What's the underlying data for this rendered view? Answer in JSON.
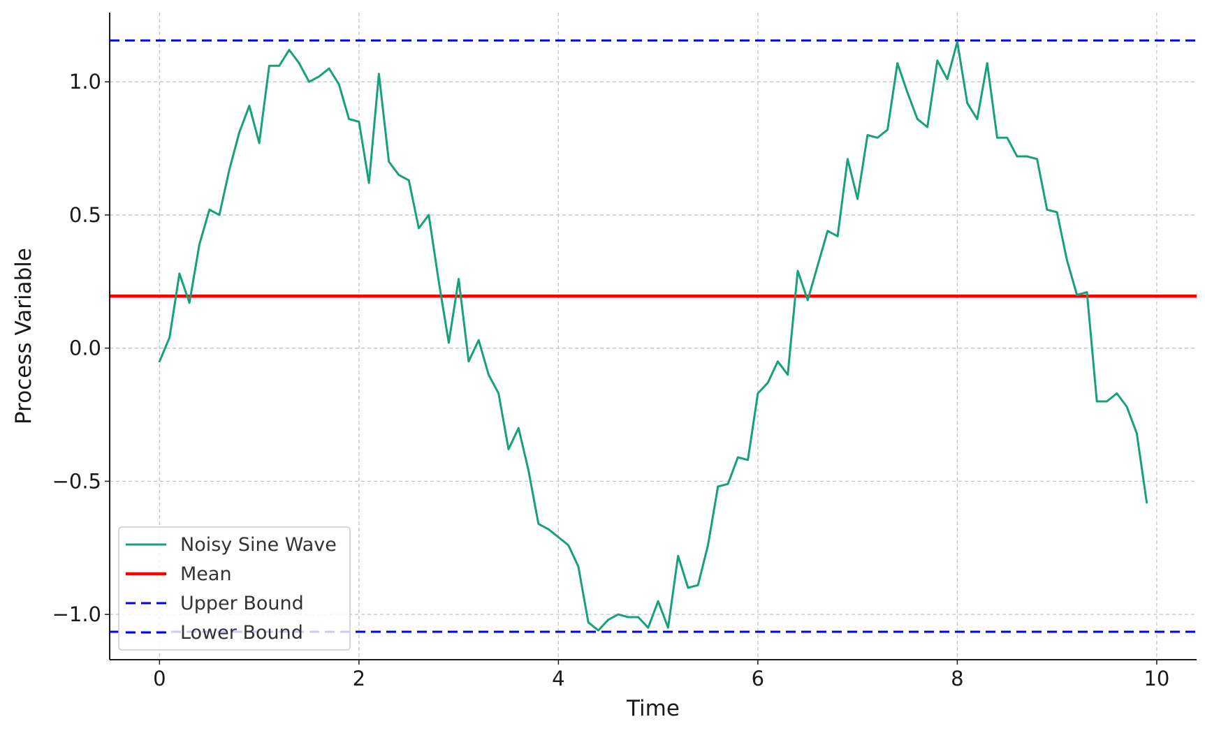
{
  "chart_data": {
    "type": "line",
    "title": "",
    "xlabel": "Time",
    "ylabel": "Process Variable",
    "xlim": [
      -0.5,
      10.4
    ],
    "ylim": [
      -1.17,
      1.26
    ],
    "xticks": [
      0,
      2,
      4,
      6,
      8,
      10
    ],
    "xtick_labels": [
      "0",
      "2",
      "4",
      "6",
      "8",
      "10"
    ],
    "yticks": [
      -1.0,
      -0.5,
      0.0,
      0.5,
      1.0
    ],
    "ytick_labels": [
      "−1.0",
      "−0.5",
      "0.0",
      "0.5",
      "1.0"
    ],
    "grid": true,
    "legend_position": "lower-left",
    "series": [
      {
        "name": "Noisy Sine Wave",
        "style": "solid",
        "color": "#16a07c",
        "x": [
          0.0,
          0.1,
          0.2,
          0.3,
          0.4,
          0.5,
          0.6,
          0.7,
          0.8,
          0.9,
          1.0,
          1.1,
          1.2,
          1.3,
          1.4,
          1.5,
          1.6,
          1.7,
          1.8,
          1.9,
          2.0,
          2.1,
          2.2,
          2.3,
          2.4,
          2.5,
          2.6,
          2.7,
          2.8,
          2.9,
          3.0,
          3.1,
          3.2,
          3.3,
          3.4,
          3.5,
          3.6,
          3.7,
          3.8,
          3.9,
          4.0,
          4.1,
          4.2,
          4.3,
          4.4,
          4.5,
          4.6,
          4.7,
          4.8,
          4.9,
          5.0,
          5.1,
          5.2,
          5.3,
          5.4,
          5.5,
          5.6,
          5.7,
          5.8,
          5.9,
          6.0,
          6.1,
          6.2,
          6.3,
          6.4,
          6.5,
          6.6,
          6.7,
          6.8,
          6.9,
          7.0,
          7.1,
          7.2,
          7.3,
          7.4,
          7.5,
          7.6,
          7.7,
          7.8,
          7.9,
          8.0,
          8.1,
          8.2,
          8.3,
          8.4,
          8.5,
          8.6,
          8.7,
          8.8,
          8.9,
          9.0,
          9.1,
          9.2,
          9.3,
          9.4,
          9.5,
          9.6,
          9.7,
          9.8,
          9.9
        ],
        "y": [
          -0.05,
          0.04,
          0.28,
          0.17,
          0.39,
          0.52,
          0.5,
          0.67,
          0.81,
          0.91,
          0.77,
          1.06,
          1.06,
          1.12,
          1.07,
          1.0,
          1.02,
          1.05,
          0.99,
          0.86,
          0.85,
          0.62,
          1.03,
          0.7,
          0.65,
          0.63,
          0.45,
          0.5,
          0.25,
          0.02,
          0.26,
          -0.05,
          0.03,
          -0.1,
          -0.17,
          -0.38,
          -0.3,
          -0.46,
          -0.66,
          -0.68,
          -0.71,
          -0.74,
          -0.82,
          -1.03,
          -1.06,
          -1.02,
          -1.0,
          -1.01,
          -1.01,
          -1.05,
          -0.95,
          -1.05,
          -0.78,
          -0.9,
          -0.89,
          -0.74,
          -0.52,
          -0.51,
          -0.41,
          -0.42,
          -0.17,
          -0.13,
          -0.05,
          -0.1,
          0.29,
          0.18,
          0.31,
          0.44,
          0.42,
          0.71,
          0.56,
          0.8,
          0.79,
          0.82,
          1.07,
          0.96,
          0.86,
          0.83,
          1.08,
          1.01,
          1.15,
          0.92,
          0.86,
          1.07,
          0.79,
          0.79,
          0.72,
          0.72,
          0.71,
          0.52,
          0.51,
          0.33,
          0.2,
          0.21,
          -0.2,
          -0.2,
          -0.17,
          -0.22,
          -0.32,
          -0.58
        ]
      },
      {
        "name": "Mean",
        "style": "solid",
        "color": "#ff0000",
        "hline": 0.195
      },
      {
        "name": "Upper Bound",
        "style": "dashed",
        "color": "#0000ee",
        "hline": 1.155
      },
      {
        "name": "Lower Bound",
        "style": "dashed",
        "color": "#0000ee",
        "hline": -1.065
      }
    ]
  }
}
